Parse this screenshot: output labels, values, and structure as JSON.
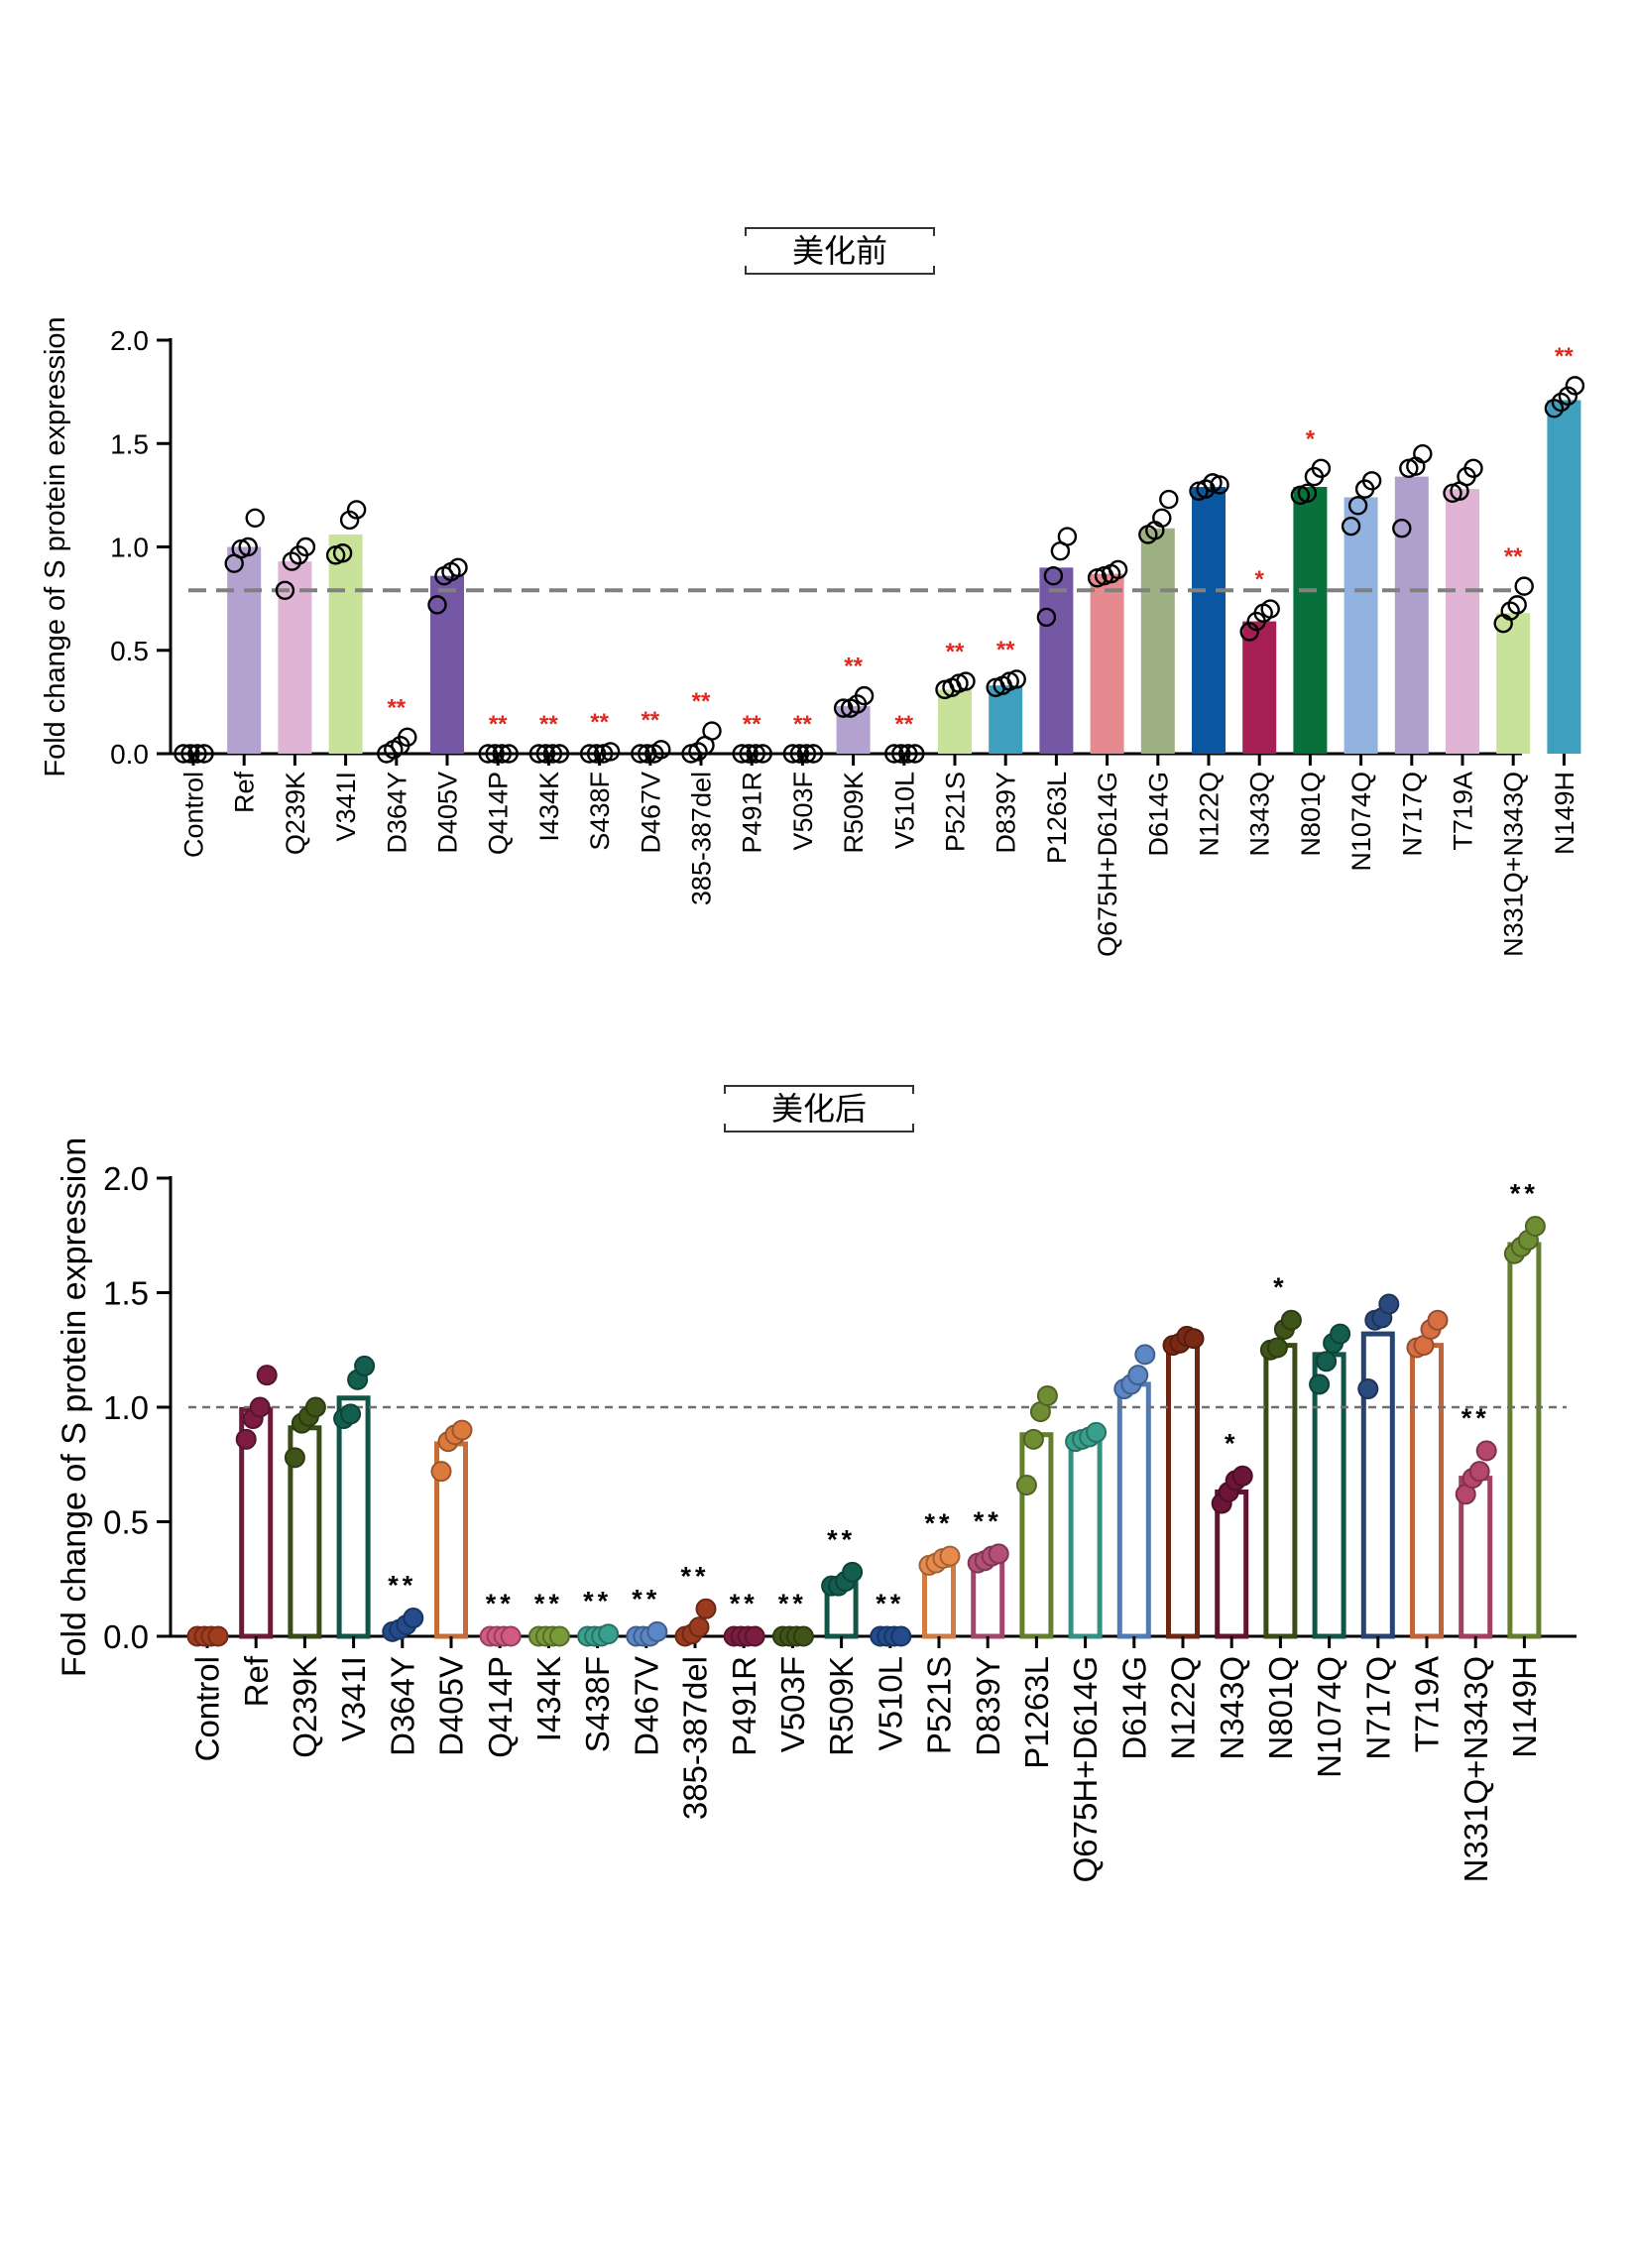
{
  "chart_data": [
    {
      "type": "bar",
      "title": "美化前",
      "ylabel": "Fold change of S protein expression",
      "ylim": [
        0,
        2.0
      ],
      "yticks": [
        "0.0",
        "0.5",
        "1.0",
        "1.5",
        "2.0"
      ],
      "reference_line": 0.79,
      "style": "filled bars, open circle points, red significance marks",
      "categories": [
        "Control",
        "Ref",
        "Q239K",
        "V341I",
        "D364Y",
        "D405V",
        "Q414P",
        "I434K",
        "S438F",
        "D467V",
        "385-387del",
        "P491R",
        "V503F",
        "R509K",
        "V510L",
        "P521S",
        "D839Y",
        "P1263L",
        "Q675H+D614G",
        "D614G",
        "N122Q",
        "N343Q",
        "N801Q",
        "N1074Q",
        "N717Q",
        "T719A",
        "N331Q+N343Q",
        "N149H"
      ],
      "values": [
        0.0,
        1.0,
        0.93,
        1.06,
        0.0,
        0.86,
        0.0,
        0.0,
        0.0,
        0.0,
        0.0,
        0.0,
        0.0,
        0.23,
        0.0,
        0.31,
        0.33,
        0.9,
        0.87,
        1.09,
        1.29,
        0.64,
        1.29,
        1.24,
        1.34,
        1.28,
        0.68,
        1.71
      ],
      "points": [
        [
          0,
          0,
          0,
          0
        ],
        [
          0.92,
          0.99,
          1.0,
          1.14
        ],
        [
          0.79,
          0.93,
          0.96,
          1.0
        ],
        [
          0.96,
          0.97,
          1.13,
          1.18
        ],
        [
          0.0,
          0.02,
          0.04,
          0.08
        ],
        [
          0.72,
          0.86,
          0.88,
          0.9
        ],
        [
          0,
          0,
          0,
          0
        ],
        [
          0,
          0,
          0,
          0
        ],
        [
          0,
          0,
          0,
          0.01
        ],
        [
          0,
          0,
          0,
          0.02
        ],
        [
          0,
          0.01,
          0.04,
          0.11
        ],
        [
          0,
          0,
          0,
          0
        ],
        [
          0,
          0,
          0,
          0
        ],
        [
          0.22,
          0.22,
          0.24,
          0.28
        ],
        [
          0,
          0,
          0,
          0
        ],
        [
          0.31,
          0.32,
          0.34,
          0.35
        ],
        [
          0.32,
          0.33,
          0.35,
          0.36
        ],
        [
          0.66,
          0.86,
          0.98,
          1.05
        ],
        [
          0.85,
          0.86,
          0.87,
          0.89
        ],
        [
          1.06,
          1.08,
          1.14,
          1.23
        ],
        [
          1.27,
          1.28,
          1.31,
          1.3
        ],
        [
          0.59,
          0.64,
          0.68,
          0.7
        ],
        [
          1.25,
          1.26,
          1.34,
          1.38
        ],
        [
          1.1,
          1.2,
          1.28,
          1.32
        ],
        [
          1.09,
          1.38,
          1.39,
          1.45
        ],
        [
          1.26,
          1.27,
          1.34,
          1.38
        ],
        [
          0.63,
          0.69,
          0.72,
          0.81
        ],
        [
          1.67,
          1.7,
          1.73,
          1.78
        ]
      ],
      "significance": [
        "",
        "",
        "",
        "",
        "**",
        "",
        "**",
        "**",
        "**",
        "**",
        "**",
        "**",
        "**",
        "**",
        "**",
        "**",
        "**",
        "",
        "",
        "",
        "",
        "*",
        "*",
        "",
        "",
        "",
        "**",
        "**"
      ],
      "colors": [
        "#cccccc",
        "#b3a2cf",
        "#e0b4d4",
        "#c9e29a",
        "#6ebfd9",
        "#7458a6",
        "#7458a6",
        "#7458a6",
        "#7458a6",
        "#7458a6",
        "#7458a6",
        "#7458a6",
        "#7458a6",
        "#b3a2cf",
        "#7458a6",
        "#c9e29a",
        "#3f9fbf",
        "#7458a6",
        "#e58a8e",
        "#9db182",
        "#0a56a0",
        "#a51f54",
        "#08703a",
        "#92b3df",
        "#aea0cd",
        "#e0b4d4",
        "#c9e29a",
        "#3f9fbf"
      ]
    },
    {
      "type": "bar",
      "title": "美化后",
      "ylabel": "Fold change of S protein expression",
      "ylim": [
        0,
        2.0
      ],
      "yticks": [
        "0.0",
        "0.5",
        "1.0",
        "1.5",
        "2.0"
      ],
      "reference_line": 1.0,
      "style": "hollow bars, filled colored points, black significance marks",
      "categories": [
        "Control",
        "Ref",
        "Q239K",
        "V341I",
        "D364Y",
        "D405V",
        "Q414P",
        "I434K",
        "S438F",
        "D467V",
        "385-387del",
        "P491R",
        "V503F",
        "R509K",
        "V510L",
        "P521S",
        "D839Y",
        "P1263L",
        "Q675H+D614G",
        "D614G",
        "N122Q",
        "N343Q",
        "N801Q",
        "N1074Q",
        "N717Q",
        "T719A",
        "N331Q+N343Q",
        "N149H"
      ],
      "values": [
        0.0,
        0.99,
        0.91,
        1.04,
        0.0,
        0.84,
        0.0,
        0.0,
        0.0,
        0.0,
        0.0,
        0.0,
        0.0,
        0.23,
        0.0,
        0.31,
        0.33,
        0.88,
        0.87,
        1.1,
        1.29,
        0.63,
        1.27,
        1.23,
        1.32,
        1.27,
        0.69,
        1.71
      ],
      "points": [
        [
          0,
          0,
          0,
          0
        ],
        [
          0.86,
          0.95,
          1.0,
          1.14
        ],
        [
          0.78,
          0.93,
          0.96,
          1.0
        ],
        [
          0.95,
          0.97,
          1.12,
          1.18
        ],
        [
          0.02,
          0.03,
          0.05,
          0.08
        ],
        [
          0.72,
          0.85,
          0.88,
          0.9
        ],
        [
          0,
          0,
          0,
          0
        ],
        [
          0,
          0,
          0,
          0
        ],
        [
          0,
          0,
          0,
          0.01
        ],
        [
          0,
          0,
          0,
          0.02
        ],
        [
          0,
          0.01,
          0.04,
          0.12
        ],
        [
          0,
          0,
          0,
          0
        ],
        [
          0,
          0,
          0,
          0
        ],
        [
          0.22,
          0.22,
          0.24,
          0.28
        ],
        [
          0,
          0,
          0,
          0
        ],
        [
          0.31,
          0.32,
          0.34,
          0.35
        ],
        [
          0.32,
          0.33,
          0.35,
          0.36
        ],
        [
          0.66,
          0.86,
          0.98,
          1.05
        ],
        [
          0.85,
          0.86,
          0.87,
          0.89
        ],
        [
          1.08,
          1.1,
          1.14,
          1.23
        ],
        [
          1.27,
          1.28,
          1.31,
          1.3
        ],
        [
          0.58,
          0.63,
          0.68,
          0.7
        ],
        [
          1.25,
          1.26,
          1.34,
          1.38
        ],
        [
          1.1,
          1.2,
          1.28,
          1.32
        ],
        [
          1.08,
          1.38,
          1.39,
          1.45
        ],
        [
          1.26,
          1.27,
          1.34,
          1.38
        ],
        [
          0.62,
          0.69,
          0.72,
          0.81
        ],
        [
          1.67,
          1.7,
          1.73,
          1.79
        ]
      ],
      "significance": [
        "",
        "",
        "",
        "",
        "**",
        "",
        "**",
        "**",
        "**",
        "**",
        "**",
        "**",
        "**",
        "**",
        "**",
        "**",
        "**",
        "",
        "",
        "",
        "",
        "*",
        "*",
        "",
        "",
        "",
        "**",
        "**"
      ],
      "colors": [
        "#a13d1f",
        "#7b1c40",
        "#3f5419",
        "#145e4f",
        "#244b8b",
        "#dc7a3e",
        "#d25a85",
        "#7a9a3a",
        "#3aa08e",
        "#5b87c7",
        "#9a3a1e",
        "#7b1c40",
        "#3f5419",
        "#145e4f",
        "#244b8b",
        "#e88a4a",
        "#b44f77",
        "#6f8e34",
        "#3aa08e",
        "#5b87c7",
        "#7a2a14",
        "#6b1638",
        "#3f5419",
        "#145e4f",
        "#2a4a7d",
        "#d86f42",
        "#b4476b",
        "#6f8e34"
      ]
    }
  ]
}
